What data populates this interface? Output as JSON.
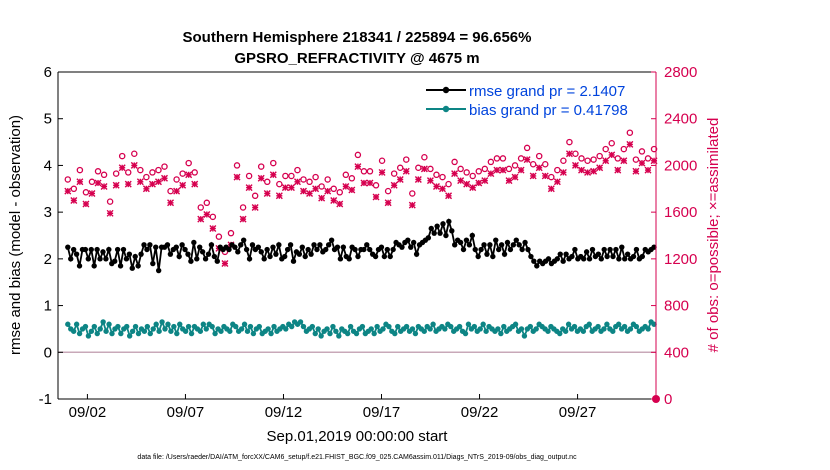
{
  "chart_data": {
    "type": "line",
    "title": "Southern Hemisphere 218341 / 225894 = 96.656%",
    "subtitle": "GPSRO_REFRACTIVITY @ 4675 m",
    "xlabel": "Sep.01,2019 00:00:00 start",
    "ylabel_left": "rmse and bias (model - observation)",
    "ylabel_right": "# of obs: o=possible; ×=assimilated",
    "footnote": "data file: /Users/raeder/DAI/ATM_forcXX/CAM6_setup/f.e21.FHIST_BGC.f09_025.CAM6assim.011/Diags_NTrS_2019-09/obs_diag_output.nc",
    "xlim": [
      0.5,
      31.0
    ],
    "ylim_left": [
      -1,
      6
    ],
    "ylim_right": [
      0,
      2800
    ],
    "x_ticks": [
      {
        "x": 2,
        "label": "09/02"
      },
      {
        "x": 7,
        "label": "09/07"
      },
      {
        "x": 12,
        "label": "09/12"
      },
      {
        "x": 17,
        "label": "09/17"
      },
      {
        "x": 22,
        "label": "09/22"
      },
      {
        "x": 27,
        "label": "09/27"
      }
    ],
    "y_ticks_left": [
      "-1",
      "0",
      "1",
      "2",
      "3",
      "4",
      "5",
      "6"
    ],
    "y_ticks_right": [
      "0",
      "400",
      "800",
      "1200",
      "1600",
      "2000",
      "2400",
      "2800"
    ],
    "grid": false,
    "legend_position": "top-right",
    "colors": {
      "rmse": "#000000",
      "bias": "#0d8585",
      "obs": "#d6004f",
      "zero_line": "#c8a8b8"
    },
    "series": [
      {
        "name": "rmse grand pr = 2.1407",
        "axis": "left",
        "values": [
          2.25,
          2.0,
          2.2,
          2.1,
          1.85,
          2.2,
          2.2,
          2.0,
          2.2,
          1.85,
          2.2,
          2.0,
          2.15,
          2.0,
          2.2,
          1.9,
          1.95,
          2.2,
          1.85,
          2.2,
          2.0,
          2.1,
          1.8,
          2.05,
          1.85,
          2.1,
          2.3,
          2.2,
          2.3,
          1.9,
          2.25,
          1.75,
          2.25,
          2.25,
          2.3,
          2.1,
          2.2,
          2.25,
          2.05,
          2.3,
          2.2,
          2.1,
          1.95,
          2.35,
          2.0,
          2.25,
          2.15,
          2.0,
          2.1,
          2.3,
          2.05,
          1.95,
          2.25,
          2.2,
          2.25,
          2.2,
          2.3,
          2.25,
          2.15,
          2.3,
          2.4,
          2.2,
          2.0,
          2.3,
          2.2,
          2.25,
          2.15,
          2.0,
          2.2,
          2.05,
          2.25,
          2.1,
          2.3,
          2.0,
          2.05,
          2.2,
          2.3,
          1.95,
          2.15,
          2.1,
          2.25,
          2.05,
          2.2,
          2.1,
          2.3,
          2.2,
          2.3,
          2.15,
          2.2,
          2.3,
          2.4,
          2.2,
          2.25,
          2.0,
          2.25,
          2.05,
          2.0,
          2.25,
          2.2,
          2.05,
          2.2,
          2.2,
          2.3,
          2.2,
          2.1,
          2.05,
          2.2,
          2.25,
          2.05,
          2.2,
          2.05,
          2.2,
          2.35,
          2.3,
          2.25,
          2.35,
          2.4,
          2.25,
          2.35,
          2.1,
          2.3,
          2.35,
          2.4,
          2.45,
          2.65,
          2.55,
          2.7,
          2.55,
          2.75,
          2.5,
          2.8,
          2.6,
          2.3,
          2.4,
          2.35,
          2.2,
          2.4,
          2.3,
          2.5,
          2.2,
          2.05,
          2.2,
          2.3,
          2.1,
          2.3,
          2.05,
          2.4,
          2.2,
          2.3,
          2.1,
          2.35,
          2.2,
          2.3,
          2.4,
          2.3,
          2.2,
          2.35,
          2.2,
          2.05,
          1.95,
          1.85,
          1.95,
          1.9,
          1.95,
          2.0,
          1.9,
          1.95,
          2.0,
          2.1,
          1.95,
          2.1,
          2.0,
          2.05,
          2.2,
          2.0,
          2.05,
          2.0,
          2.15,
          2.0,
          2.2,
          2.05,
          2.1,
          2.0,
          2.2,
          2.05,
          2.2,
          2.05,
          2.2,
          2.0,
          2.25,
          2.0,
          2.1,
          2.0,
          2.05,
          2.2,
          2.0,
          2.05,
          2.2,
          2.15,
          2.2,
          2.25
        ]
      },
      {
        "name": "bias grand pr = 0.41798",
        "axis": "left",
        "values": [
          0.6,
          0.5,
          0.45,
          0.6,
          0.4,
          0.5,
          0.55,
          0.35,
          0.45,
          0.55,
          0.4,
          0.5,
          0.65,
          0.45,
          0.6,
          0.4,
          0.5,
          0.55,
          0.4,
          0.5,
          0.55,
          0.35,
          0.45,
          0.55,
          0.4,
          0.5,
          0.45,
          0.55,
          0.4,
          0.5,
          0.6,
          0.45,
          0.65,
          0.5,
          0.6,
          0.45,
          0.55,
          0.4,
          0.6,
          0.5,
          0.45,
          0.55,
          0.4,
          0.55,
          0.5,
          0.45,
          0.6,
          0.5,
          0.6,
          0.55,
          0.4,
          0.5,
          0.45,
          0.55,
          0.5,
          0.45,
          0.6,
          0.55,
          0.45,
          0.5,
          0.6,
          0.45,
          0.55,
          0.4,
          0.5,
          0.55,
          0.4,
          0.45,
          0.5,
          0.4,
          0.55,
          0.45,
          0.5,
          0.55,
          0.5,
          0.6,
          0.55,
          0.65,
          0.6,
          0.65,
          0.55,
          0.45,
          0.5,
          0.55,
          0.4,
          0.5,
          0.35,
          0.45,
          0.5,
          0.4,
          0.55,
          0.45,
          0.35,
          0.5,
          0.45,
          0.4,
          0.55,
          0.45,
          0.4,
          0.5,
          0.55,
          0.4,
          0.45,
          0.5,
          0.4,
          0.55,
          0.45,
          0.5,
          0.6,
          0.55,
          0.45,
          0.4,
          0.55,
          0.45,
          0.5,
          0.55,
          0.45,
          0.5,
          0.4,
          0.55,
          0.5,
          0.45,
          0.55,
          0.5,
          0.6,
          0.45,
          0.5,
          0.55,
          0.5,
          0.6,
          0.55,
          0.45,
          0.5,
          0.55,
          0.45,
          0.4,
          0.6,
          0.5,
          0.55,
          0.45,
          0.5,
          0.6,
          0.45,
          0.55,
          0.5,
          0.45,
          0.5,
          0.4,
          0.55,
          0.45,
          0.5,
          0.55,
          0.6,
          0.45,
          0.5,
          0.35,
          0.5,
          0.55,
          0.45,
          0.5,
          0.6,
          0.55,
          0.5,
          0.45,
          0.55,
          0.5,
          0.45,
          0.4,
          0.5,
          0.45,
          0.6,
          0.5,
          0.55,
          0.45,
          0.5,
          0.45,
          0.55,
          0.6,
          0.45,
          0.5,
          0.55,
          0.45,
          0.5,
          0.6,
          0.5,
          0.45,
          0.55,
          0.6,
          0.5,
          0.55,
          0.45,
          0.5,
          0.6,
          0.55,
          0.45,
          0.5,
          0.55,
          0.5,
          0.65,
          0.6
        ]
      },
      {
        "name": "possible",
        "axis": "right",
        "marker": "o",
        "values": [
          1880,
          2020,
          1800,
          1740,
          1960,
          2090,
          1770,
          1920,
          1860,
          2070,
          1950,
          1810,
          1920,
          2030,
          1690,
          1780,
          1930,
          1860,
          2080,
          2020,
          1940,
          1880,
          2100,
          2030,
          1960,
          2080,
          1900,
          1820,
          1940,
          1860,
          1960,
          1840,
          1990,
          1930,
          1780,
          1860,
          1880,
          1890,
          1930,
          1960,
          2020,
          1800,
          1940,
          1690,
          1640,
          1730,
          1680,
          1790,
          1560,
          1430,
          1390,
          1310,
          1260,
          1370,
          1420,
          2080,
          2000,
          1820,
          1640,
          1700,
          1910,
          1830,
          1740,
          1930,
          1990,
          1950,
          1860,
          1740,
          2020,
          1980,
          1840,
          1900,
          1910,
          1830,
          1910,
          1780,
          1960,
          1810,
          1880,
          1900,
          1860,
          1710,
          1900,
          1830,
          1820,
          1700,
          1880,
          1990,
          1800,
          1910,
          1770,
          1860,
          1920,
          1950,
          1890,
          1940,
          2090,
          1880,
          1950,
          1990,
          1950,
          1920,
          1830,
          1860,
          2040,
          1940,
          1780,
          1900,
          1930,
          1940,
          1980,
          1860,
          2050,
          1960,
          1760,
          1890,
          1980,
          1920,
          2070,
          2000,
          1970,
          1850,
          1920,
          1980,
          1900,
          1930,
          1840,
          1990,
          2030,
          1880,
          1970,
          1980,
          1940,
          1870,
          1910,
          1960,
          1950,
          2080,
          1970,
          1980,
          2030,
          2100,
          2060,
          1990,
          2060,
          1880,
          1970,
          1950,
          2000,
          1980,
          2060,
          2040,
          2150,
          1940,
          2010,
          2040,
          2080,
          1980,
          2010,
          2090,
          1900,
          1990,
          1960,
          2010,
          2040,
          2070,
          2200,
          2000,
          2100,
          2060,
          2060,
          1950,
          2040,
          1960,
          2050,
          2170,
          2080,
          2050,
          2140,
          1950,
          2190,
          2240,
          2060,
          2000,
          2140,
          2210,
          2280,
          2180,
          2050,
          2080,
          2120,
          2010,
          2060,
          1990,
          2140
        ]
      },
      {
        "name": "assimilated",
        "axis": "right",
        "marker": "x",
        "values": [
          1780,
          1920,
          1700,
          1640,
          1860,
          1990,
          1670,
          1820,
          1760,
          1970,
          1850,
          1710,
          1820,
          1930,
          1590,
          1680,
          1830,
          1760,
          1980,
          1920,
          1840,
          1780,
          2000,
          1930,
          1860,
          1980,
          1800,
          1720,
          1840,
          1760,
          1860,
          1740,
          1890,
          1830,
          1680,
          1760,
          1780,
          1790,
          1830,
          1860,
          1920,
          1700,
          1840,
          1590,
          1540,
          1630,
          1580,
          1690,
          1460,
          1330,
          1290,
          1210,
          1160,
          1270,
          1320,
          1980,
          1900,
          1720,
          1540,
          1600,
          1810,
          1730,
          1640,
          1830,
          1890,
          1850,
          1760,
          1640,
          1920,
          1880,
          1740,
          1800,
          1810,
          1730,
          1810,
          1680,
          1860,
          1710,
          1780,
          1800,
          1760,
          1610,
          1800,
          1730,
          1720,
          1600,
          1780,
          1890,
          1700,
          1810,
          1670,
          1760,
          1820,
          1850,
          1790,
          1840,
          1990,
          1780,
          1850,
          1890,
          1850,
          1820,
          1730,
          1760,
          1940,
          1840,
          1680,
          1800,
          1830,
          1840,
          1880,
          1760,
          1950,
          1860,
          1660,
          1790,
          1880,
          1820,
          1970,
          1900,
          1870,
          1750,
          1820,
          1880,
          1800,
          1830,
          1740,
          1890,
          1930,
          1780,
          1870,
          1880,
          1840,
          1770,
          1810,
          1860,
          1850,
          1980,
          1870,
          1880,
          1930,
          2000,
          1960,
          1890,
          1960,
          1780,
          1870,
          1850,
          1900,
          1880,
          1960,
          1940,
          2050,
          1840,
          1910,
          1940,
          1980,
          1880,
          1910,
          1990,
          1800,
          1890,
          1860,
          1910,
          1940,
          1970,
          2100,
          1900,
          2000,
          1960,
          1960,
          1850,
          1940,
          1860,
          1950,
          2070,
          1980,
          1950,
          2040,
          1850,
          2090,
          2140,
          1960,
          1900,
          2040,
          2110,
          2180,
          2080,
          1950,
          1980,
          2020,
          1910,
          1960,
          1890,
          2040
        ]
      }
    ]
  }
}
